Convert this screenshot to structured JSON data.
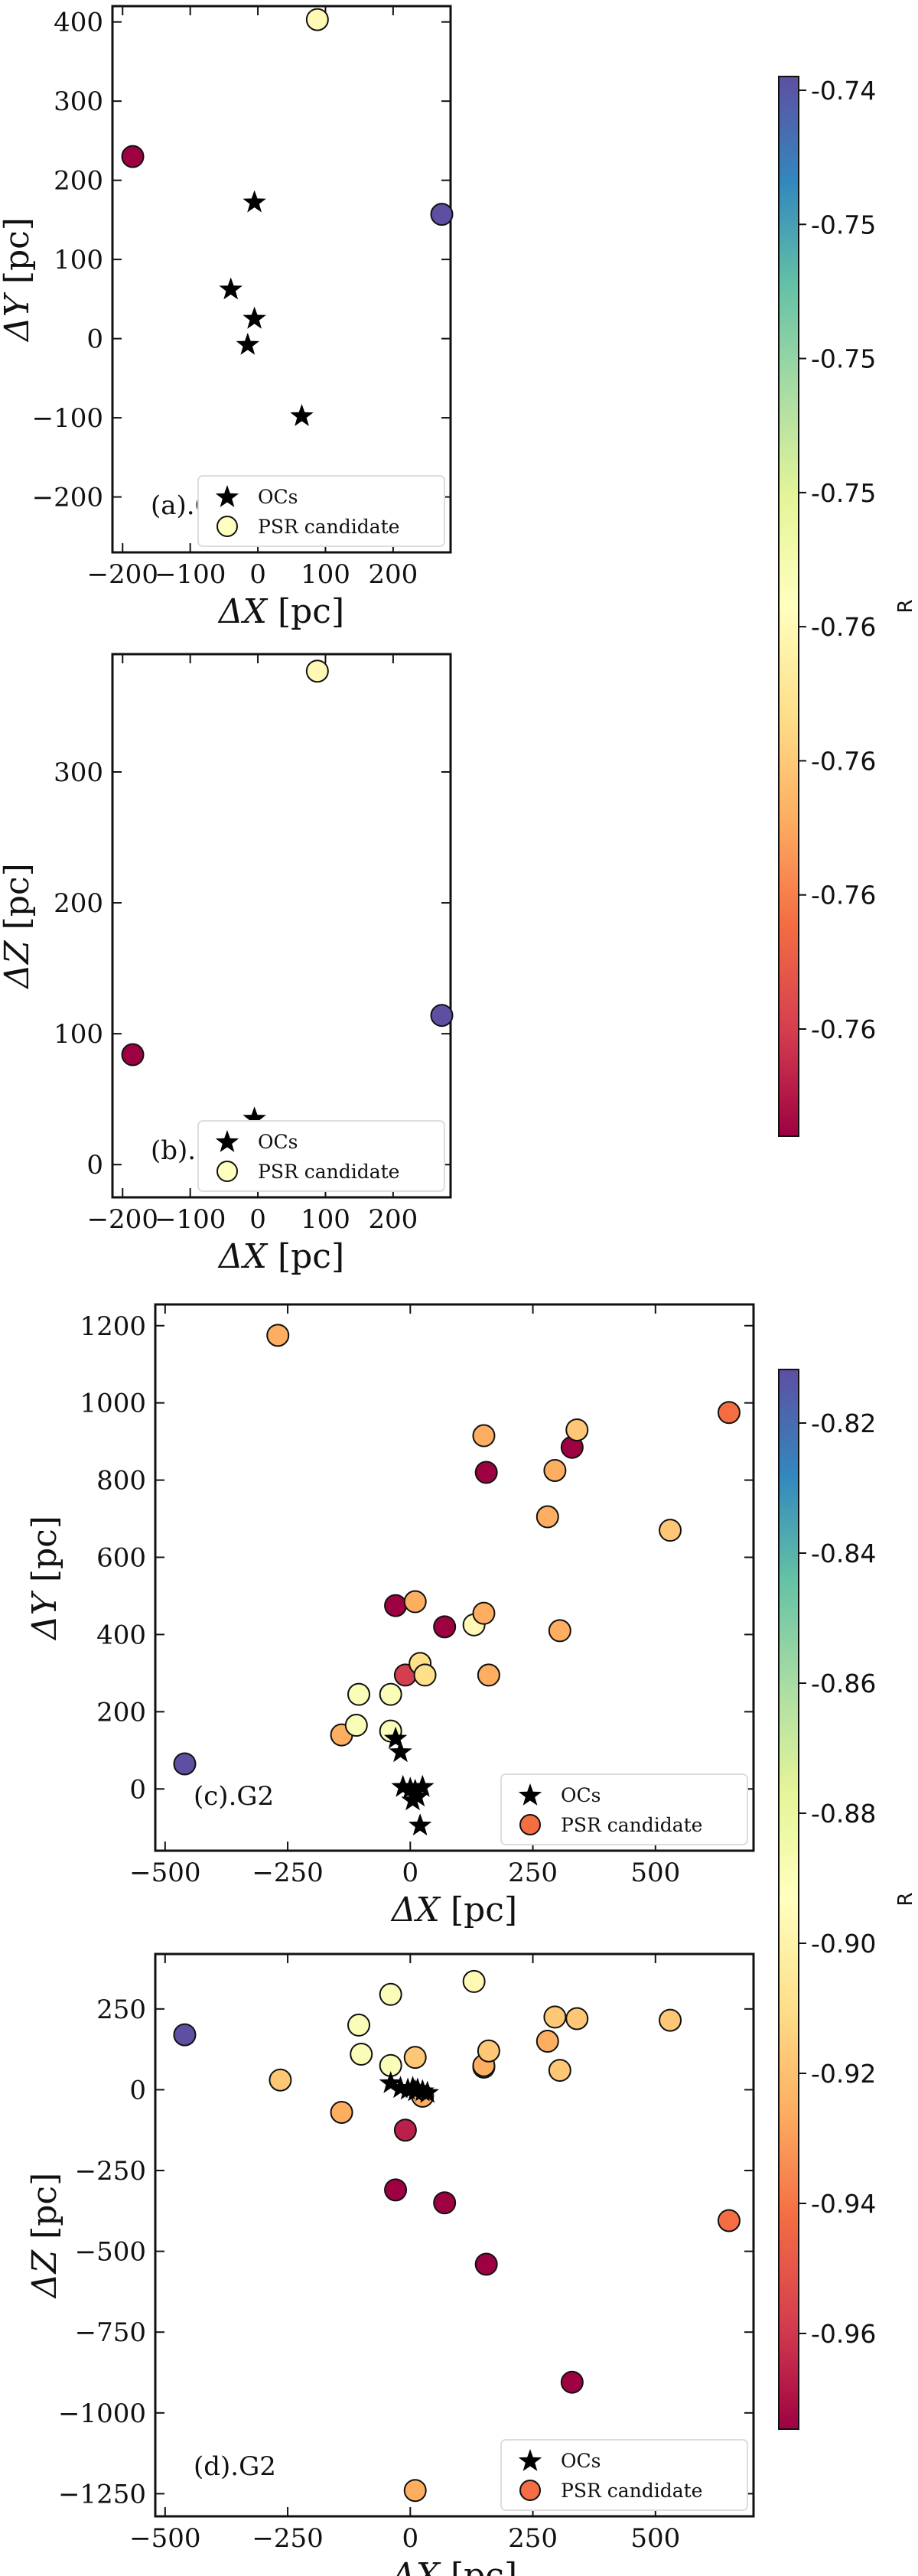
{
  "colormap": [
    "#9e0142",
    "#d53e4f",
    "#f46d43",
    "#fdae61",
    "#fee08b",
    "#ffffbf",
    "#e6f598",
    "#abdda4",
    "#66c2a5",
    "#3288bd",
    "#5e4fa2"
  ],
  "chart_data": [
    {
      "id": "a",
      "type": "scatter",
      "tag": "(a).G1",
      "xlabel": "ΔX",
      "ylabel": "ΔY",
      "unit": "[pc]",
      "xlim": [
        -215,
        285
      ],
      "ylim": [
        -270,
        420
      ],
      "xticks": [
        -200,
        -100,
        0,
        100,
        200
      ],
      "yticks": [
        -200,
        -100,
        0,
        100,
        200,
        300,
        400
      ],
      "legend": [
        "OCs",
        "PSR candidate"
      ],
      "ocs": [
        [
          -5,
          172
        ],
        [
          -40,
          62
        ],
        [
          -5,
          25
        ],
        [
          -15,
          -8
        ],
        [
          65,
          -98
        ],
        [
          50,
          -243
        ]
      ],
      "psr": [
        [
          -185,
          230,
          0.0
        ],
        [
          88,
          403,
          0.48
        ],
        [
          272,
          157,
          1.0
        ]
      ]
    },
    {
      "id": "b",
      "type": "scatter",
      "tag": "(b).G1",
      "xlabel": "ΔX",
      "ylabel": "ΔZ",
      "unit": "[pc]",
      "xlim": [
        -215,
        285
      ],
      "ylim": [
        -25,
        390
      ],
      "xticks": [
        -200,
        -100,
        0,
        100,
        200
      ],
      "yticks": [
        0,
        100,
        200,
        300
      ],
      "legend": [
        "OCs",
        "PSR candidate"
      ],
      "ocs": [
        [
          -5,
          35
        ],
        [
          -40,
          0
        ],
        [
          -15,
          0
        ],
        [
          -5,
          -10
        ],
        [
          50,
          -5
        ],
        [
          65,
          -8
        ]
      ],
      "psr": [
        [
          -185,
          84,
          0.0
        ],
        [
          88,
          377,
          0.48
        ],
        [
          272,
          114,
          1.0
        ]
      ]
    },
    {
      "id": "c",
      "type": "scatter",
      "tag": "(c).G2",
      "xlabel": "ΔX",
      "ylabel": "ΔY",
      "unit": "[pc]",
      "xlim": [
        -520,
        700
      ],
      "ylim": [
        -160,
        1255
      ],
      "xticks": [
        -500,
        -250,
        0,
        250,
        500
      ],
      "yticks": [
        0,
        200,
        400,
        600,
        800,
        1000,
        1200
      ],
      "legend": [
        "OCs",
        "PSR candidate"
      ],
      "ocs": [
        [
          -30,
          130
        ],
        [
          -20,
          95
        ],
        [
          -15,
          5
        ],
        [
          0,
          0
        ],
        [
          10,
          -5
        ],
        [
          25,
          5
        ],
        [
          15,
          -20
        ],
        [
          5,
          -30
        ],
        [
          20,
          -95
        ]
      ],
      "psr": [
        [
          -460,
          65,
          1.0
        ],
        [
          -270,
          1175,
          0.3
        ],
        [
          -140,
          140,
          0.3
        ],
        [
          -110,
          165,
          0.52
        ],
        [
          -105,
          245,
          0.52
        ],
        [
          -40,
          150,
          0.52
        ],
        [
          -40,
          245,
          0.52
        ],
        [
          -30,
          475,
          0.0
        ],
        [
          -10,
          295,
          0.1
        ],
        [
          10,
          485,
          0.3
        ],
        [
          20,
          325,
          0.4
        ],
        [
          30,
          295,
          0.4
        ],
        [
          70,
          420,
          0.0
        ],
        [
          130,
          425,
          0.48
        ],
        [
          150,
          915,
          0.3
        ],
        [
          150,
          455,
          0.3
        ],
        [
          155,
          820,
          0.0
        ],
        [
          160,
          295,
          0.3
        ],
        [
          280,
          705,
          0.3
        ],
        [
          295,
          825,
          0.3
        ],
        [
          305,
          410,
          0.3
        ],
        [
          330,
          885,
          0.0
        ],
        [
          340,
          930,
          0.35
        ],
        [
          530,
          670,
          0.35
        ],
        [
          650,
          975,
          0.2
        ]
      ]
    },
    {
      "id": "d",
      "type": "scatter",
      "tag": "(d).G2",
      "xlabel": "ΔX",
      "ylabel": "ΔZ",
      "unit": "[pc]",
      "xlim": [
        -520,
        700
      ],
      "ylim": [
        -1320,
        420
      ],
      "xticks": [
        -500,
        -250,
        0,
        250,
        500
      ],
      "yticks": [
        -1250,
        -1000,
        -750,
        -500,
        -250,
        0,
        250
      ],
      "legend": [
        "OCs",
        "PSR candidate"
      ],
      "ocs": [
        [
          -40,
          20
        ],
        [
          -20,
          5
        ],
        [
          -5,
          0
        ],
        [
          5,
          5
        ],
        [
          15,
          0
        ],
        [
          25,
          -5
        ],
        [
          35,
          -10
        ],
        [
          10,
          -5
        ]
      ],
      "psr": [
        [
          -460,
          170,
          1.0
        ],
        [
          -265,
          30,
          0.35
        ],
        [
          -140,
          -70,
          0.3
        ],
        [
          -105,
          200,
          0.52
        ],
        [
          -100,
          110,
          0.52
        ],
        [
          -40,
          295,
          0.52
        ],
        [
          -40,
          75,
          0.52
        ],
        [
          -30,
          -310,
          0.0
        ],
        [
          -10,
          -125,
          0.05
        ],
        [
          10,
          100,
          0.35
        ],
        [
          10,
          -1240,
          0.3
        ],
        [
          25,
          -20,
          0.3
        ],
        [
          70,
          -350,
          0.0
        ],
        [
          130,
          335,
          0.48
        ],
        [
          150,
          70,
          0.35
        ],
        [
          150,
          75,
          0.3
        ],
        [
          155,
          -540,
          0.0
        ],
        [
          160,
          120,
          0.35
        ],
        [
          280,
          150,
          0.3
        ],
        [
          295,
          225,
          0.35
        ],
        [
          305,
          60,
          0.35
        ],
        [
          330,
          -905,
          0.0
        ],
        [
          340,
          220,
          0.35
        ],
        [
          530,
          215,
          0.35
        ],
        [
          650,
          -405,
          0.2
        ]
      ]
    }
  ],
  "colorbars": [
    {
      "id": "cb1",
      "label": "R",
      "ticks": [
        "-0.74",
        "-0.75",
        "-0.75",
        "-0.75",
        "-0.76",
        "-0.76",
        "-0.76",
        "-0.76"
      ]
    },
    {
      "id": "cb2",
      "label": "R",
      "ticks": [
        "-0.82",
        "-0.84",
        "-0.86",
        "-0.88",
        "-0.90",
        "-0.92",
        "-0.94",
        "-0.96"
      ]
    }
  ]
}
